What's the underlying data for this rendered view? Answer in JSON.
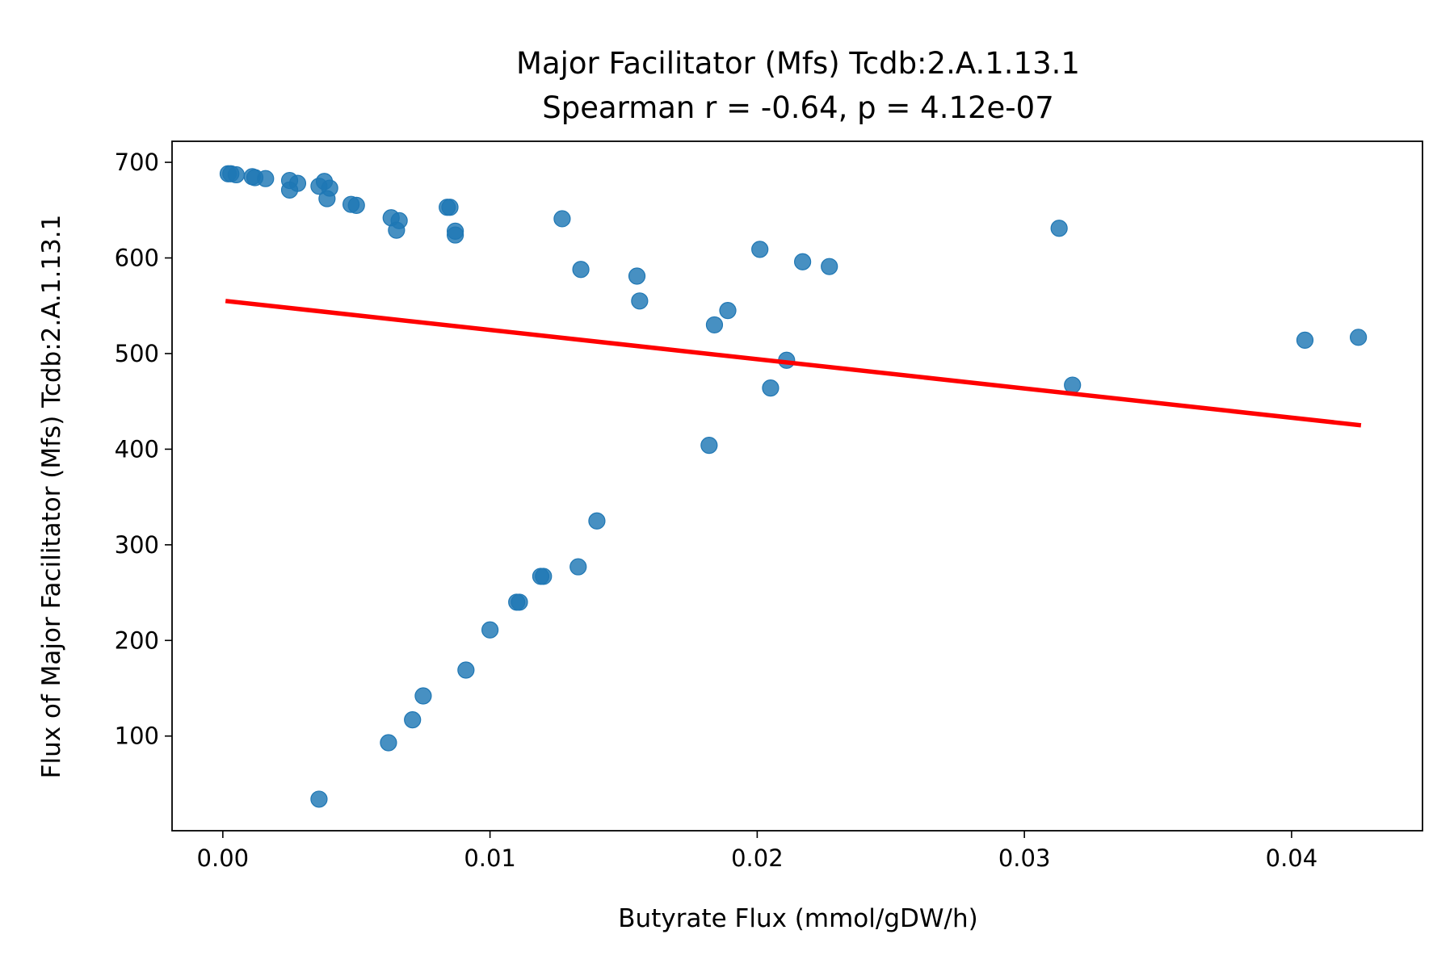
{
  "chart_data": {
    "type": "scatter",
    "title": "Major Facilitator (Mfs) Tcdb:2.A.1.13.1",
    "subtitle": "Spearman r = -0.64, p = 4.12e-07",
    "xlabel": "Butyrate Flux (mmol/gDW/h)",
    "ylabel": "Flux of Major Facilitator (Mfs) Tcdb:2.A.1.13.1",
    "xlim": [
      -0.0019,
      0.0449
    ],
    "ylim": [
      1,
      722
    ],
    "xticks": [
      {
        "value": 0.0,
        "label": "0.00"
      },
      {
        "value": 0.01,
        "label": "0.01"
      },
      {
        "value": 0.02,
        "label": "0.02"
      },
      {
        "value": 0.03,
        "label": "0.03"
      },
      {
        "value": 0.04,
        "label": "0.04"
      }
    ],
    "yticks": [
      {
        "value": 100,
        "label": "100"
      },
      {
        "value": 200,
        "label": "200"
      },
      {
        "value": 300,
        "label": "300"
      },
      {
        "value": 400,
        "label": "400"
      },
      {
        "value": 500,
        "label": "500"
      },
      {
        "value": 600,
        "label": "600"
      },
      {
        "value": 700,
        "label": "700"
      }
    ],
    "grid": false,
    "point_color": "#1f77b4",
    "line_color": "#ff0000",
    "series": [
      {
        "type": "scatter",
        "points": [
          {
            "x": 0.0002,
            "y": 688
          },
          {
            "x": 0.0003,
            "y": 688
          },
          {
            "x": 0.0005,
            "y": 687
          },
          {
            "x": 0.0011,
            "y": 685
          },
          {
            "x": 0.0012,
            "y": 684
          },
          {
            "x": 0.0016,
            "y": 683
          },
          {
            "x": 0.0025,
            "y": 681
          },
          {
            "x": 0.0028,
            "y": 678
          },
          {
            "x": 0.0025,
            "y": 671
          },
          {
            "x": 0.0036,
            "y": 675
          },
          {
            "x": 0.0038,
            "y": 680
          },
          {
            "x": 0.004,
            "y": 673
          },
          {
            "x": 0.0039,
            "y": 662
          },
          {
            "x": 0.0048,
            "y": 656
          },
          {
            "x": 0.005,
            "y": 655
          },
          {
            "x": 0.0063,
            "y": 642
          },
          {
            "x": 0.0066,
            "y": 639
          },
          {
            "x": 0.0065,
            "y": 629
          },
          {
            "x": 0.0084,
            "y": 653
          },
          {
            "x": 0.0085,
            "y": 653
          },
          {
            "x": 0.0087,
            "y": 628
          },
          {
            "x": 0.0087,
            "y": 624
          },
          {
            "x": 0.0127,
            "y": 641
          },
          {
            "x": 0.0134,
            "y": 588
          },
          {
            "x": 0.0155,
            "y": 581
          },
          {
            "x": 0.0156,
            "y": 555
          },
          {
            "x": 0.0184,
            "y": 530
          },
          {
            "x": 0.0189,
            "y": 545
          },
          {
            "x": 0.0201,
            "y": 609
          },
          {
            "x": 0.0217,
            "y": 596
          },
          {
            "x": 0.0227,
            "y": 591
          },
          {
            "x": 0.0211,
            "y": 493
          },
          {
            "x": 0.0205,
            "y": 464
          },
          {
            "x": 0.0182,
            "y": 404
          },
          {
            "x": 0.0313,
            "y": 631
          },
          {
            "x": 0.0318,
            "y": 467
          },
          {
            "x": 0.0405,
            "y": 514
          },
          {
            "x": 0.0425,
            "y": 517
          },
          {
            "x": 0.014,
            "y": 325
          },
          {
            "x": 0.0133,
            "y": 277
          },
          {
            "x": 0.0119,
            "y": 267
          },
          {
            "x": 0.012,
            "y": 267
          },
          {
            "x": 0.011,
            "y": 240
          },
          {
            "x": 0.0111,
            "y": 240
          },
          {
            "x": 0.01,
            "y": 211
          },
          {
            "x": 0.0091,
            "y": 169
          },
          {
            "x": 0.0075,
            "y": 142
          },
          {
            "x": 0.0071,
            "y": 117
          },
          {
            "x": 0.0062,
            "y": 93
          },
          {
            "x": 0.0036,
            "y": 34
          }
        ]
      },
      {
        "type": "line",
        "points": [
          {
            "x": 0.0001,
            "y": 555
          },
          {
            "x": 0.0426,
            "y": 425
          }
        ]
      }
    ]
  }
}
